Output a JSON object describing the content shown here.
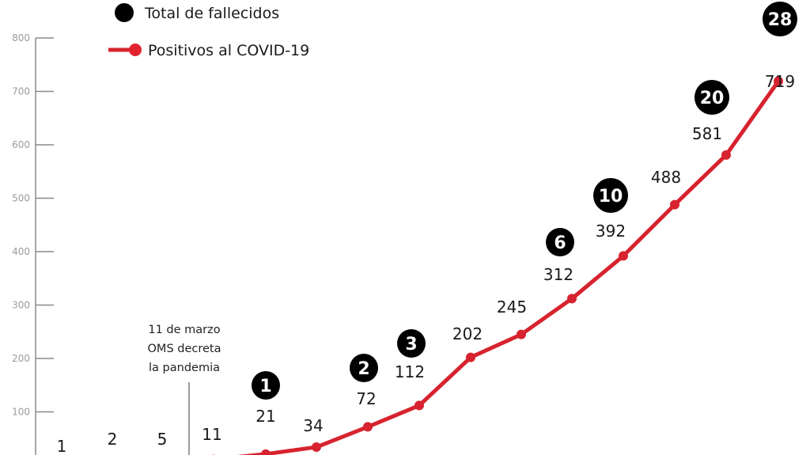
{
  "legend": {
    "deaths_label": "Total de fallecidos",
    "positives_label": "Positivos al COVID-19"
  },
  "annotation": {
    "line1": "11 de marzo",
    "line2": "OMS decreta",
    "line3": "la pandemia"
  },
  "colors": {
    "line": "#d7232f",
    "deaths_badge": "#000000",
    "axis": "#8a8a8a"
  },
  "chart_data": {
    "type": "line",
    "title": "",
    "xlabel": "",
    "ylabel": "",
    "ylim": [
      0,
      800
    ],
    "yticks": [
      100,
      200,
      300,
      400,
      500,
      600,
      700,
      800
    ],
    "grid": false,
    "legend_position": "top-left",
    "series": [
      {
        "name": "Positivos al COVID-19",
        "values": [
          1,
          2,
          5,
          11,
          21,
          34,
          72,
          112,
          202,
          245,
          312,
          392,
          488,
          581,
          719
        ]
      },
      {
        "name": "Total de fallecidos",
        "values": [
          null,
          null,
          null,
          null,
          1,
          null,
          2,
          3,
          null,
          null,
          6,
          10,
          null,
          20,
          28
        ]
      }
    ],
    "annotations": [
      {
        "index": 3,
        "text": "11 de marzo OMS decreta la pandemia"
      }
    ]
  }
}
